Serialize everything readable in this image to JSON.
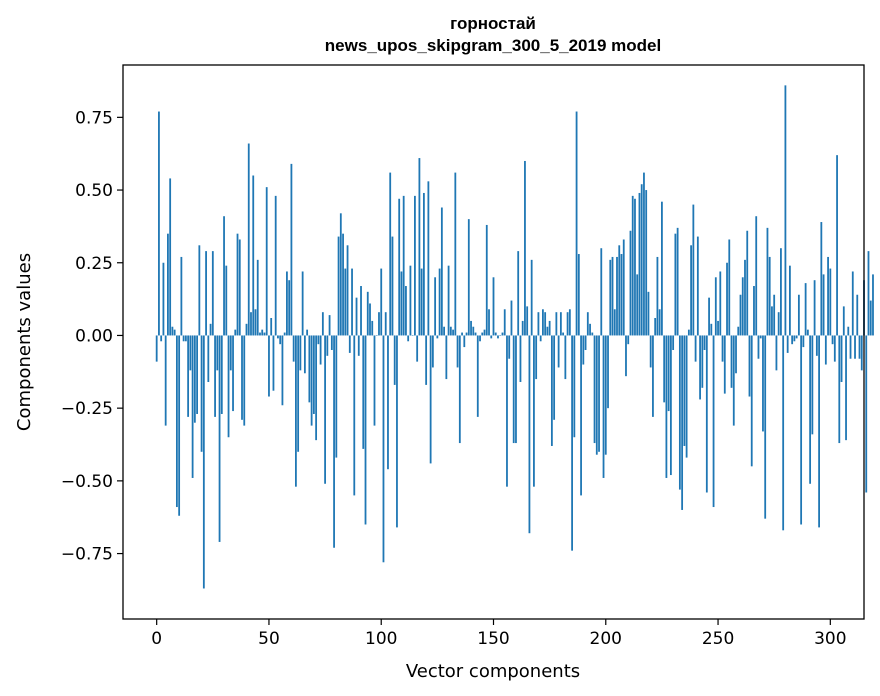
{
  "chart_data": {
    "type": "bar",
    "title": "горностай",
    "subtitle": "news_upos_skipgram_300_5_2019 model",
    "xlabel": "Vector components",
    "ylabel": "Components values",
    "xlim": [
      -15,
      315
    ],
    "ylim": [
      -0.975,
      0.93
    ],
    "xticks": [
      {
        "value": 0,
        "label": "0"
      },
      {
        "value": 50,
        "label": "50"
      },
      {
        "value": 100,
        "label": "100"
      },
      {
        "value": 150,
        "label": "150"
      },
      {
        "value": 200,
        "label": "200"
      },
      {
        "value": 250,
        "label": "250"
      },
      {
        "value": 300,
        "label": "300"
      }
    ],
    "yticks": [
      {
        "value": -0.75,
        "label": "−0.75"
      },
      {
        "value": -0.5,
        "label": "−0.50"
      },
      {
        "value": -0.25,
        "label": "−0.25"
      },
      {
        "value": 0,
        "label": "0.00"
      },
      {
        "value": 0.25,
        "label": "0.25"
      },
      {
        "value": 0.5,
        "label": "0.50"
      },
      {
        "value": 0.75,
        "label": "0.75"
      }
    ],
    "grid": false,
    "bar_color": "#1f77b4",
    "values": [
      -0.09,
      0.77,
      -0.02,
      0.25,
      -0.31,
      0.35,
      0.54,
      0.03,
      0.02,
      -0.59,
      -0.62,
      0.27,
      -0.02,
      -0.02,
      -0.28,
      -0.12,
      -0.49,
      -0.3,
      -0.27,
      0.31,
      -0.4,
      -0.87,
      0.29,
      -0.16,
      0.04,
      0.29,
      -0.28,
      -0.12,
      -0.71,
      -0.27,
      0.41,
      0.24,
      -0.35,
      -0.12,
      -0.26,
      0.02,
      0.35,
      0.33,
      -0.29,
      -0.31,
      0.04,
      0.66,
      0.08,
      0.55,
      0.09,
      0.26,
      0.01,
      0.02,
      0.01,
      0.51,
      -0.21,
      0.06,
      -0.19,
      0.48,
      -0.01,
      -0.03,
      -0.24,
      0.01,
      0.22,
      0.19,
      0.59,
      -0.09,
      -0.52,
      -0.4,
      -0.12,
      0.22,
      -0.13,
      0.02,
      -0.23,
      -0.31,
      -0.27,
      -0.36,
      -0.03,
      -0.1,
      0.08,
      -0.51,
      -0.07,
      0.07,
      -0.05,
      -0.73,
      -0.42,
      0.34,
      0.42,
      0.35,
      0.23,
      0.31,
      -0.06,
      0.23,
      -0.55,
      0.13,
      -0.07,
      0.17,
      -0.39,
      -0.65,
      0.15,
      0.11,
      0.05,
      -0.31,
      0.0,
      0.08,
      0.23,
      -0.78,
      0.08,
      -0.46,
      0.56,
      0.34,
      -0.17,
      -0.66,
      0.47,
      0.22,
      0.48,
      0.17,
      -0.02,
      0.24,
      0.0,
      0.48,
      -0.09,
      0.61,
      0.23,
      0.49,
      -0.17,
      0.53,
      -0.44,
      -0.11,
      0.2,
      -0.01,
      0.23,
      0.44,
      0.03,
      -0.15,
      0.24,
      0.03,
      0.02,
      0.56,
      -0.11,
      -0.37,
      0.01,
      -0.04,
      0.01,
      0.4,
      0.05,
      0.03,
      0.01,
      -0.28,
      -0.02,
      0.01,
      0.02,
      0.38,
      0.09,
      -0.01,
      0.2,
      0.01,
      -0.01,
      0.0,
      0.01,
      0.09,
      -0.52,
      -0.08,
      0.12,
      -0.37,
      -0.37,
      0.29,
      -0.16,
      0.05,
      0.6,
      0.1,
      -0.68,
      0.26,
      -0.52,
      -0.15,
      0.08,
      -0.02,
      0.09,
      0.08,
      0.03,
      0.05,
      -0.38,
      -0.29,
      0.08,
      -0.11,
      0.08,
      0.01,
      -0.15,
      0.08,
      0.09,
      -0.74,
      -0.35,
      0.77,
      0.28,
      -0.55,
      -0.1,
      -0.05,
      0.08,
      0.04,
      0.01,
      -0.37,
      -0.41,
      -0.4,
      0.3,
      -0.49,
      -0.41,
      -0.25,
      0.26,
      0.27,
      0.09,
      0.27,
      0.31,
      0.28,
      0.33,
      -0.14,
      -0.03,
      0.36,
      0.48,
      0.47,
      0.21,
      0.49,
      0.52,
      0.56,
      0.5,
      0.15,
      -0.11,
      -0.28,
      0.06,
      0.27,
      0.09,
      0.46,
      -0.23,
      -0.49,
      -0.26,
      -0.48,
      -0.05,
      0.35,
      0.37,
      -0.53,
      -0.6,
      -0.38,
      -0.42,
      0.02,
      0.31,
      0.45,
      -0.09,
      0.34,
      -0.22,
      -0.18,
      -0.05,
      -0.54,
      0.13,
      0.04,
      -0.59,
      0.2,
      0.05,
      0.22,
      -0.09,
      -0.2,
      0.25,
      0.33,
      -0.18,
      -0.31,
      -0.13,
      0.03,
      0.14,
      0.2,
      0.26,
      0.36,
      -0.21,
      -0.45,
      0.17,
      0.41,
      -0.08,
      -0.01,
      -0.33,
      -0.63,
      0.37,
      0.27,
      0.1,
      0.14,
      -0.12,
      0.08,
      0.3,
      -0.67,
      0.86,
      -0.06,
      0.24,
      -0.03,
      -0.02,
      -0.01,
      0.14,
      -0.65,
      -0.04,
      0.18,
      0.02,
      -0.51,
      -0.34,
      0.19,
      -0.07,
      -0.66,
      0.39,
      0.21,
      -0.1,
      0.27,
      0.23,
      -0.03,
      -0.09,
      0.62,
      -0.37,
      -0.16,
      0.1,
      -0.36,
      0.03,
      -0.08,
      0.22,
      -0.08,
      0.14,
      -0.08,
      -0.12,
      0.19,
      -0.54,
      0.29,
      0.12,
      0.21
    ]
  }
}
